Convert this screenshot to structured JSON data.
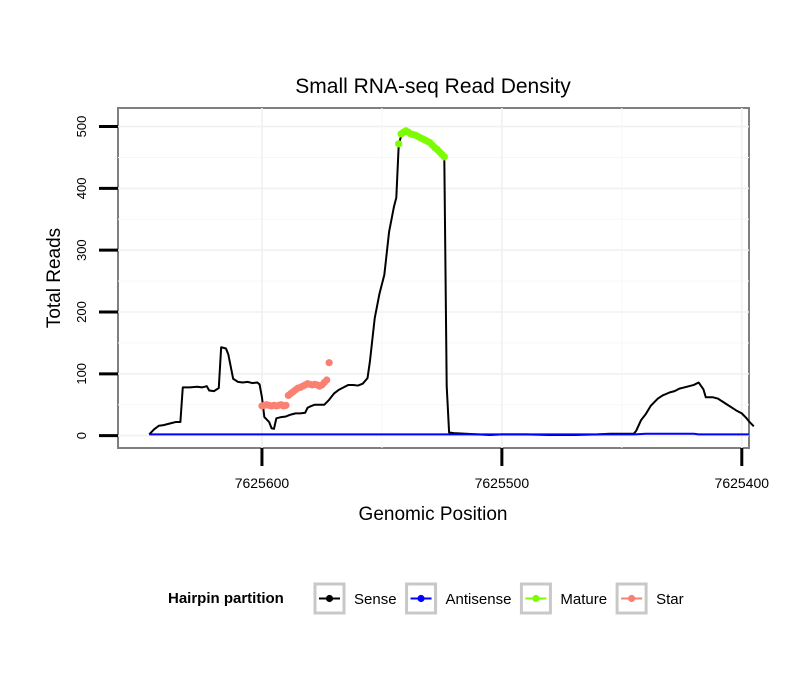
{
  "chart_data": {
    "type": "line",
    "title": "Small RNA-seq Read Density",
    "xlabel": "Genomic Position",
    "ylabel": "Total Reads",
    "x_reversed": true,
    "xlim": [
      7625660,
      7625397
    ],
    "ylim": [
      -20,
      530
    ],
    "x_ticks": [
      7625600,
      7625500,
      7625400
    ],
    "x_tick_labels": [
      "7625600",
      "7625500",
      "7625400"
    ],
    "y_ticks": [
      0,
      100,
      200,
      300,
      400,
      500
    ],
    "y_tick_labels": [
      "0",
      "100",
      "200",
      "300",
      "400",
      "500"
    ],
    "grid": true,
    "legend": {
      "title": "Hairpin partition",
      "position": "bottom",
      "entries": [
        {
          "label": "Sense",
          "color": "#000000"
        },
        {
          "label": "Antisense",
          "color": "#0000ff"
        },
        {
          "label": "Mature",
          "color": "#7cfc00"
        },
        {
          "label": "Star",
          "color": "#fa8072"
        }
      ]
    },
    "series": [
      {
        "name": "Sense",
        "color": "#000000",
        "style": "line",
        "points": [
          [
            7625647,
            2
          ],
          [
            7625645,
            10
          ],
          [
            7625643,
            16
          ],
          [
            7625641,
            17
          ],
          [
            7625638,
            20
          ],
          [
            7625636,
            22
          ],
          [
            7625634,
            22
          ],
          [
            7625633,
            78
          ],
          [
            7625630,
            78
          ],
          [
            7625627,
            79
          ],
          [
            7625625,
            78
          ],
          [
            7625623,
            80
          ],
          [
            7625622,
            73
          ],
          [
            7625620,
            72
          ],
          [
            7625618,
            77
          ],
          [
            7625617,
            143
          ],
          [
            7625615,
            141
          ],
          [
            7625614,
            131
          ],
          [
            7625612,
            92
          ],
          [
            7625610,
            87
          ],
          [
            7625608,
            86
          ],
          [
            7625606,
            87
          ],
          [
            7625604,
            85
          ],
          [
            7625602,
            86
          ],
          [
            7625601,
            83
          ],
          [
            7625600,
            62
          ],
          [
            7625599,
            30
          ],
          [
            7625597,
            22
          ],
          [
            7625596,
            12
          ],
          [
            7625595,
            11
          ],
          [
            7625594,
            28
          ],
          [
            7625592,
            30
          ],
          [
            7625590,
            31
          ],
          [
            7625588,
            34
          ],
          [
            7625586,
            36
          ],
          [
            7625584,
            36
          ],
          [
            7625582,
            37
          ],
          [
            7625581,
            45
          ],
          [
            7625580,
            47
          ],
          [
            7625578,
            50
          ],
          [
            7625576,
            50
          ],
          [
            7625574,
            50
          ],
          [
            7625572,
            58
          ],
          [
            7625570,
            68
          ],
          [
            7625568,
            74
          ],
          [
            7625566,
            78
          ],
          [
            7625564,
            82
          ],
          [
            7625562,
            82
          ],
          [
            7625560,
            81
          ],
          [
            7625558,
            84
          ],
          [
            7625556,
            93
          ],
          [
            7625555,
            120
          ],
          [
            7625553,
            190
          ],
          [
            7625551,
            230
          ],
          [
            7625549,
            260
          ],
          [
            7625547,
            330
          ],
          [
            7625545,
            370
          ],
          [
            7625544,
            385
          ],
          [
            7625543,
            470
          ],
          [
            7625542,
            485
          ],
          [
            7625540,
            490
          ],
          [
            7625538,
            492
          ],
          [
            7625536,
            485
          ],
          [
            7625534,
            482
          ],
          [
            7625532,
            478
          ],
          [
            7625530,
            470
          ],
          [
            7625528,
            465
          ],
          [
            7625526,
            458
          ],
          [
            7625525,
            450
          ],
          [
            7625524,
            450
          ],
          [
            7625523,
            80
          ],
          [
            7625522,
            5
          ],
          [
            7625520,
            4
          ],
          [
            7625515,
            3
          ],
          [
            7625505,
            1
          ],
          [
            7625500,
            2
          ],
          [
            7625490,
            2
          ],
          [
            7625480,
            1
          ],
          [
            7625470,
            1
          ],
          [
            7625460,
            2
          ],
          [
            7625455,
            3
          ],
          [
            7625450,
            3
          ],
          [
            7625445,
            3
          ],
          [
            7625444,
            8
          ],
          [
            7625442,
            25
          ],
          [
            7625440,
            35
          ],
          [
            7625438,
            48
          ],
          [
            7625435,
            60
          ],
          [
            7625433,
            65
          ],
          [
            7625430,
            70
          ],
          [
            7625428,
            72
          ],
          [
            7625426,
            76
          ],
          [
            7625424,
            78
          ],
          [
            7625422,
            80
          ],
          [
            7625420,
            82
          ],
          [
            7625418,
            86
          ],
          [
            7625416,
            75
          ],
          [
            7625415,
            62
          ],
          [
            7625412,
            62
          ],
          [
            7625410,
            60
          ],
          [
            7625408,
            55
          ],
          [
            7625406,
            50
          ],
          [
            7625404,
            45
          ],
          [
            7625402,
            40
          ],
          [
            7625400,
            36
          ],
          [
            7625398,
            28
          ],
          [
            7625397,
            23
          ],
          [
            7625395,
            15
          ]
        ]
      },
      {
        "name": "Antisense",
        "color": "#0000ff",
        "style": "line",
        "points": [
          [
            7625647,
            2
          ],
          [
            7625460,
            2
          ],
          [
            7625445,
            2
          ],
          [
            7625440,
            3
          ],
          [
            7625430,
            3
          ],
          [
            7625420,
            3
          ],
          [
            7625418,
            2
          ],
          [
            7625397,
            2
          ]
        ]
      },
      {
        "name": "Mature",
        "color": "#7cfc00",
        "style": "points",
        "points": [
          [
            7625543,
            472
          ],
          [
            7625542,
            488
          ],
          [
            7625541,
            491
          ],
          [
            7625540,
            493
          ],
          [
            7625539,
            491
          ],
          [
            7625538,
            488
          ],
          [
            7625537,
            487
          ],
          [
            7625536,
            486
          ],
          [
            7625535,
            484
          ],
          [
            7625534,
            482
          ],
          [
            7625533,
            480
          ],
          [
            7625532,
            478
          ],
          [
            7625531,
            476
          ],
          [
            7625530,
            474
          ],
          [
            7625529,
            470
          ],
          [
            7625528,
            466
          ],
          [
            7625527,
            463
          ],
          [
            7625526,
            459
          ],
          [
            7625525,
            455
          ],
          [
            7625524,
            451
          ]
        ]
      },
      {
        "name": "Star",
        "color": "#fa8072",
        "style": "points",
        "points": [
          [
            7625600,
            48
          ],
          [
            7625599,
            49
          ],
          [
            7625598,
            50
          ],
          [
            7625597,
            49
          ],
          [
            7625596,
            48
          ],
          [
            7625595,
            49
          ],
          [
            7625594,
            48
          ],
          [
            7625593,
            49
          ],
          [
            7625592,
            50
          ],
          [
            7625591,
            48
          ],
          [
            7625590,
            49
          ],
          [
            7625589,
            65
          ],
          [
            7625588,
            68
          ],
          [
            7625587,
            71
          ],
          [
            7625586,
            74
          ],
          [
            7625585,
            77
          ],
          [
            7625584,
            78
          ],
          [
            7625583,
            80
          ],
          [
            7625582,
            82
          ],
          [
            7625581,
            84
          ],
          [
            7625580,
            83
          ],
          [
            7625579,
            82
          ],
          [
            7625578,
            83
          ],
          [
            7625577,
            82
          ],
          [
            7625576,
            80
          ],
          [
            7625575,
            82
          ],
          [
            7625574,
            86
          ],
          [
            7625573,
            90
          ],
          [
            7625572,
            118
          ]
        ]
      }
    ]
  }
}
